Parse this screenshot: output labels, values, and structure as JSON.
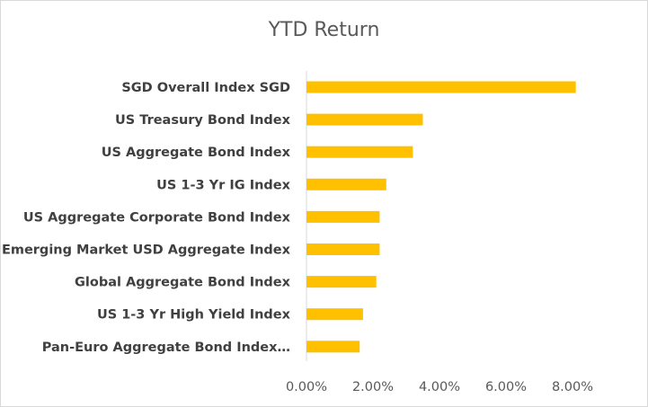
{
  "chart_data": {
    "type": "bar",
    "orientation": "horizontal",
    "title": "YTD Return",
    "xlabel": "",
    "ylabel": "",
    "categories": [
      "SGD Overall Index SGD",
      "US Treasury Bond Index",
      "US Aggregate Bond Index",
      "US 1-3 Yr IG Index",
      "US Aggregate Corporate Bond Index",
      "Emerging Market USD Aggregate Index",
      "Global Aggregate Bond Index",
      "US 1-3 Yr High Yield Index",
      "Pan-Euro Aggregate Bond Index…"
    ],
    "values": [
      8.1,
      3.5,
      3.2,
      2.4,
      2.2,
      2.2,
      2.1,
      1.7,
      1.6
    ],
    "value_unit": "%",
    "xlim": [
      0,
      8
    ],
    "xticks": [
      0,
      2,
      4,
      6,
      8
    ],
    "xtick_labels": [
      "0.00%",
      "2.00%",
      "4.00%",
      "6.00%",
      "8.00%"
    ],
    "bar_color": "#ffc000",
    "grid": false,
    "legend": "none"
  }
}
